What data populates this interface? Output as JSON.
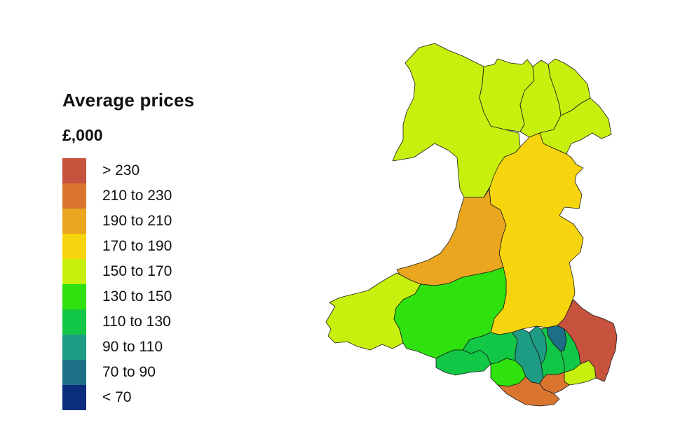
{
  "legend": {
    "title": "Average prices",
    "subtitle": "£,000",
    "items": [
      {
        "label": "> 230",
        "color": "#c7523d"
      },
      {
        "label": "210 to 230",
        "color": "#da7530"
      },
      {
        "label": "190 to 210",
        "color": "#eaa61e"
      },
      {
        "label": "170 to 190",
        "color": "#f7d50e"
      },
      {
        "label": "150 to 170",
        "color": "#c7f00f"
      },
      {
        "label": "130 to 150",
        "color": "#2fe10e"
      },
      {
        "label": "110 to 130",
        "color": "#12c746"
      },
      {
        "label": "90 to 110",
        "color": "#1e9c83"
      },
      {
        "label": "70 to 90",
        "color": "#1c6f87"
      },
      {
        "label": "< 70",
        "color": "#0c2c7e"
      }
    ]
  },
  "regions": [
    {
      "name": "anglesey-gwynedd-north",
      "band": "150 to 170"
    },
    {
      "name": "conwy",
      "band": "150 to 170"
    },
    {
      "name": "denbighshire",
      "band": "150 to 170"
    },
    {
      "name": "flintshire",
      "band": "150 to 170"
    },
    {
      "name": "wrexham",
      "band": "150 to 170"
    },
    {
      "name": "powys",
      "band": "170 to 190"
    },
    {
      "name": "ceredigion",
      "band": "190 to 210"
    },
    {
      "name": "pembrokeshire",
      "band": "150 to 170"
    },
    {
      "name": "carmarthenshire",
      "band": "130 to 150"
    },
    {
      "name": "swansea",
      "band": "110 to 130"
    },
    {
      "name": "neath-port-talbot",
      "band": "110 to 130"
    },
    {
      "name": "bridgend",
      "band": "130 to 150"
    },
    {
      "name": "rhondda-cynon-taf",
      "band": "90 to 110"
    },
    {
      "name": "merthyr-tydfil",
      "band": "90 to 110"
    },
    {
      "name": "caerphilly",
      "band": "110 to 130"
    },
    {
      "name": "blaenau-gwent",
      "band": "70 to 90"
    },
    {
      "name": "torfaen",
      "band": "110 to 130"
    },
    {
      "name": "monmouthshire",
      "band": "> 230"
    },
    {
      "name": "newport",
      "band": "150 to 170"
    },
    {
      "name": "cardiff",
      "band": "210 to 230"
    },
    {
      "name": "vale-of-glamorgan",
      "band": "210 to 230"
    }
  ]
}
